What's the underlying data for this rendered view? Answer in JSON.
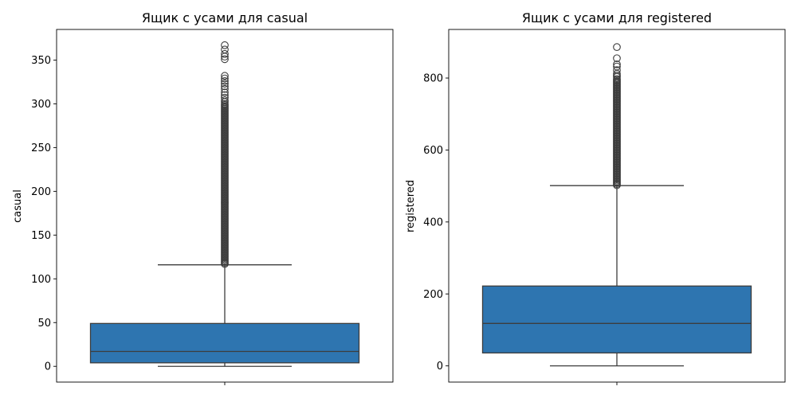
{
  "chart_data": [
    {
      "type": "box",
      "title": "Ящик с усами для casual",
      "ylabel": "casual",
      "xlabel": "",
      "ylim": [
        -18,
        385
      ],
      "yticks": [
        0,
        50,
        100,
        150,
        200,
        250,
        300,
        350
      ],
      "grid": false,
      "box": {
        "whisker_low": 0,
        "q1": 4,
        "median": 17,
        "q3": 49,
        "whisker_high": 116
      },
      "outlier_range": [
        117,
        300
      ],
      "outliers_high": [
        302,
        304,
        307,
        310,
        313,
        317,
        320,
        323,
        326,
        329,
        332,
        351,
        354,
        357,
        362,
        367
      ],
      "color": "#2e75b0"
    },
    {
      "type": "box",
      "title": "Ящик с усами для registered",
      "ylabel": "registered",
      "xlabel": "",
      "ylim": [
        -45,
        935
      ],
      "yticks": [
        0,
        200,
        400,
        600,
        800
      ],
      "grid": false,
      "box": {
        "whisker_low": 0,
        "q1": 36,
        "median": 118,
        "q3": 222,
        "whisker_high": 501
      },
      "outlier_range": [
        502,
        800
      ],
      "outliers_high": [
        803,
        807,
        812,
        822,
        832,
        838,
        855,
        886
      ],
      "color": "#2e75b0"
    }
  ]
}
